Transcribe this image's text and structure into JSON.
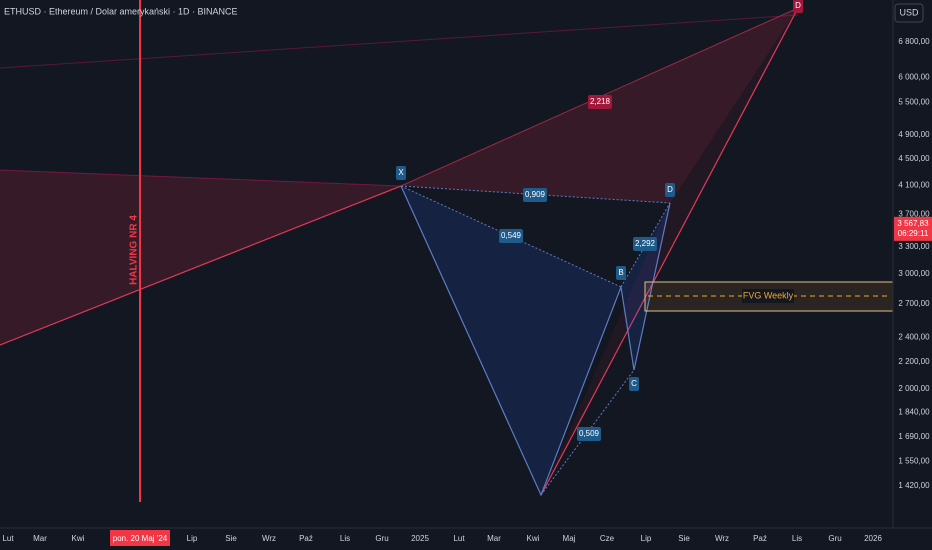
{
  "header": {
    "symbol": "ETHUSD · Ethereum / Dolar amerykański · 1D · BINANCE",
    "currency_button": "USD"
  },
  "price_axis": {
    "scale": "log",
    "ticks": [
      {
        "value": 6800,
        "label": "6 800,00"
      },
      {
        "value": 6000,
        "label": "6 000,00"
      },
      {
        "value": 5500,
        "label": "5 500,00"
      },
      {
        "value": 4900,
        "label": "4 900,00"
      },
      {
        "value": 4500,
        "label": "4 500,00"
      },
      {
        "value": 4100,
        "label": "4 100,00"
      },
      {
        "value": 3700,
        "label": "3 700,00"
      },
      {
        "value": 3300,
        "label": "3 300,00"
      },
      {
        "value": 3000,
        "label": "3 000,00"
      },
      {
        "value": 2700,
        "label": "2 700,00"
      },
      {
        "value": 2400,
        "label": "2 400,00"
      },
      {
        "value": 2200,
        "label": "2 200,00"
      },
      {
        "value": 2000,
        "label": "2 000,00"
      },
      {
        "value": 1840,
        "label": "1 840,00"
      },
      {
        "value": 1690,
        "label": "1 690,00"
      },
      {
        "value": 1550,
        "label": "1 550,00"
      },
      {
        "value": 1420,
        "label": "1 420,00"
      }
    ],
    "last_price": {
      "value": 3567.83,
      "label": "3 567,83"
    },
    "countdown": "06:29:11"
  },
  "time_axis": {
    "labels": [
      "Lut",
      "Mar",
      "Kwi",
      "pon. 20 Maj '24",
      "Lip",
      "Sie",
      "Wrz",
      "Paź",
      "Lis",
      "Gru",
      "2025",
      "Lut",
      "Mar",
      "Kwi",
      "Maj",
      "Cze",
      "Lip",
      "Sie",
      "Wrz",
      "Paź",
      "Lis",
      "Gru",
      "2026"
    ]
  },
  "annotations": {
    "halving": "HALVING NR 4",
    "fvg": "FVG Weekly",
    "points": {
      "x": "X",
      "b": "B",
      "c": "C",
      "d": "D",
      "d_big": "D"
    },
    "ratios": {
      "xb": "0,549",
      "xd": "0,909",
      "ac": "0,509",
      "bd": "2,292",
      "big": "2,218"
    }
  }
}
